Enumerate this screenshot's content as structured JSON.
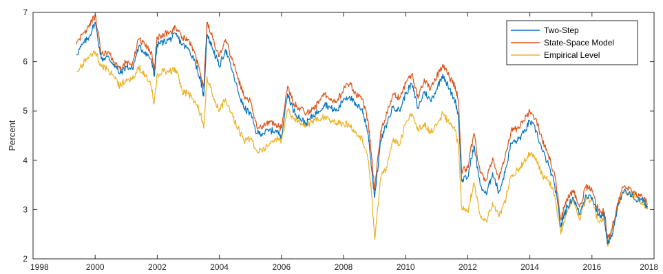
{
  "chart_data": {
    "type": "line",
    "title": "",
    "xlabel": "",
    "ylabel": "Percent",
    "xlim": [
      1998,
      2018
    ],
    "ylim": [
      2,
      7
    ],
    "xticks": [
      "1998",
      "2000",
      "2002",
      "2004",
      "2006",
      "2008",
      "2010",
      "2012",
      "2014",
      "2016",
      "2018"
    ],
    "yticks": [
      "2",
      "3",
      "4",
      "5",
      "6",
      "7"
    ],
    "grid": false,
    "legend_position": "top-right",
    "series": [
      {
        "name": "Two-Step",
        "color": "#0072BD",
        "x": [
          1999.4,
          1999.6,
          1999.8,
          2000.0,
          2000.2,
          2000.4,
          2000.6,
          2000.8,
          2001.0,
          2001.2,
          2001.4,
          2001.6,
          2001.8,
          2001.9,
          2002.0,
          2002.2,
          2002.4,
          2002.6,
          2002.8,
          2003.0,
          2003.2,
          2003.4,
          2003.5,
          2003.6,
          2003.8,
          2004.0,
          2004.2,
          2004.4,
          2004.6,
          2004.8,
          2005.0,
          2005.2,
          2005.4,
          2005.6,
          2005.8,
          2006.0,
          2006.2,
          2006.4,
          2006.6,
          2006.8,
          2007.0,
          2007.2,
          2007.4,
          2007.6,
          2007.8,
          2008.0,
          2008.2,
          2008.4,
          2008.6,
          2008.8,
          2008.9,
          2009.0,
          2009.2,
          2009.4,
          2009.6,
          2009.8,
          2010.0,
          2010.2,
          2010.4,
          2010.6,
          2010.8,
          2011.0,
          2011.2,
          2011.4,
          2011.6,
          2011.7,
          2011.8,
          2012.0,
          2012.2,
          2012.4,
          2012.6,
          2012.8,
          2013.0,
          2013.2,
          2013.4,
          2013.6,
          2013.8,
          2014.0,
          2014.2,
          2014.4,
          2014.6,
          2014.8,
          2015.0,
          2015.1,
          2015.2,
          2015.4,
          2015.6,
          2015.8,
          2016.0,
          2016.2,
          2016.4,
          2016.5,
          2016.6,
          2016.8,
          2017.0,
          2017.2,
          2017.4,
          2017.6,
          2017.8
        ],
        "values": [
          6.15,
          6.35,
          6.5,
          6.8,
          6.05,
          6.1,
          5.95,
          5.75,
          5.9,
          5.85,
          6.3,
          6.2,
          6.05,
          5.7,
          6.35,
          6.4,
          6.45,
          6.55,
          6.35,
          6.25,
          6.05,
          5.6,
          5.3,
          6.55,
          6.25,
          5.9,
          6.25,
          5.85,
          5.4,
          5.05,
          4.95,
          4.55,
          4.55,
          4.6,
          4.6,
          4.5,
          5.35,
          5.0,
          4.85,
          4.75,
          4.9,
          5.0,
          5.15,
          5.05,
          5.0,
          5.25,
          5.3,
          5.1,
          5.05,
          4.5,
          3.85,
          3.25,
          4.4,
          4.75,
          5.1,
          5.0,
          5.35,
          5.55,
          5.05,
          5.4,
          5.2,
          5.45,
          5.75,
          5.45,
          5.2,
          4.9,
          3.6,
          3.65,
          4.3,
          3.5,
          3.3,
          3.75,
          3.35,
          3.75,
          4.35,
          4.4,
          4.55,
          4.8,
          4.6,
          4.2,
          3.9,
          3.5,
          2.65,
          2.9,
          3.05,
          3.25,
          2.9,
          3.3,
          3.25,
          2.9,
          2.85,
          2.3,
          2.4,
          2.95,
          3.35,
          3.35,
          3.2,
          3.2,
          3.05
        ]
      },
      {
        "name": "State-Space Model",
        "color": "#D95319",
        "x": [
          1999.4,
          1999.6,
          1999.8,
          2000.0,
          2000.2,
          2000.4,
          2000.6,
          2000.8,
          2001.0,
          2001.2,
          2001.4,
          2001.6,
          2001.8,
          2001.9,
          2002.0,
          2002.2,
          2002.4,
          2002.6,
          2002.8,
          2003.0,
          2003.2,
          2003.4,
          2003.5,
          2003.6,
          2003.8,
          2004.0,
          2004.2,
          2004.4,
          2004.6,
          2004.8,
          2005.0,
          2005.2,
          2005.4,
          2005.6,
          2005.8,
          2006.0,
          2006.2,
          2006.4,
          2006.6,
          2006.8,
          2007.0,
          2007.2,
          2007.4,
          2007.6,
          2007.8,
          2008.0,
          2008.2,
          2008.4,
          2008.6,
          2008.8,
          2008.9,
          2009.0,
          2009.2,
          2009.4,
          2009.6,
          2009.8,
          2010.0,
          2010.2,
          2010.4,
          2010.6,
          2010.8,
          2011.0,
          2011.2,
          2011.4,
          2011.6,
          2011.7,
          2011.8,
          2012.0,
          2012.2,
          2012.4,
          2012.6,
          2012.8,
          2013.0,
          2013.2,
          2013.4,
          2013.6,
          2013.8,
          2014.0,
          2014.2,
          2014.4,
          2014.6,
          2014.8,
          2015.0,
          2015.1,
          2015.2,
          2015.4,
          2015.6,
          2015.8,
          2016.0,
          2016.2,
          2016.4,
          2016.5,
          2016.6,
          2016.8,
          2017.0,
          2017.2,
          2017.4,
          2017.6,
          2017.8
        ],
        "values": [
          6.35,
          6.55,
          6.7,
          6.95,
          6.15,
          6.2,
          6.0,
          5.85,
          6.0,
          5.95,
          6.45,
          6.35,
          6.2,
          5.85,
          6.5,
          6.55,
          6.6,
          6.7,
          6.5,
          6.45,
          6.2,
          5.75,
          5.45,
          6.8,
          6.45,
          6.1,
          6.45,
          6.05,
          5.65,
          5.3,
          5.2,
          4.7,
          4.7,
          4.75,
          4.75,
          4.65,
          5.5,
          5.15,
          5.05,
          4.95,
          5.05,
          5.15,
          5.35,
          5.25,
          5.2,
          5.45,
          5.55,
          5.35,
          5.25,
          4.75,
          4.1,
          3.4,
          4.6,
          4.95,
          5.35,
          5.25,
          5.55,
          5.75,
          5.25,
          5.65,
          5.45,
          5.7,
          5.95,
          5.7,
          5.5,
          5.2,
          3.8,
          3.85,
          4.55,
          3.75,
          3.6,
          4.05,
          3.6,
          4.05,
          4.6,
          4.65,
          4.8,
          5.0,
          4.85,
          4.4,
          4.1,
          3.7,
          2.8,
          3.05,
          3.2,
          3.4,
          3.05,
          3.45,
          3.4,
          3.0,
          2.95,
          2.4,
          2.5,
          3.05,
          3.45,
          3.45,
          3.3,
          3.3,
          3.1
        ]
      },
      {
        "name": "Empirical Level",
        "color": "#EDB120",
        "x": [
          1999.4,
          1999.6,
          1999.8,
          2000.0,
          2000.2,
          2000.4,
          2000.6,
          2000.8,
          2001.0,
          2001.2,
          2001.4,
          2001.6,
          2001.8,
          2001.9,
          2002.0,
          2002.2,
          2002.4,
          2002.6,
          2002.8,
          2003.0,
          2003.2,
          2003.4,
          2003.5,
          2003.6,
          2003.8,
          2004.0,
          2004.2,
          2004.4,
          2004.6,
          2004.8,
          2005.0,
          2005.2,
          2005.4,
          2005.6,
          2005.8,
          2006.0,
          2006.2,
          2006.4,
          2006.6,
          2006.8,
          2007.0,
          2007.2,
          2007.4,
          2007.6,
          2007.8,
          2008.0,
          2008.2,
          2008.4,
          2008.6,
          2008.8,
          2008.9,
          2009.0,
          2009.2,
          2009.4,
          2009.6,
          2009.8,
          2010.0,
          2010.2,
          2010.4,
          2010.6,
          2010.8,
          2011.0,
          2011.2,
          2011.4,
          2011.6,
          2011.7,
          2011.8,
          2012.0,
          2012.2,
          2012.4,
          2012.6,
          2012.8,
          2013.0,
          2013.2,
          2013.4,
          2013.6,
          2013.8,
          2014.0,
          2014.2,
          2014.4,
          2014.6,
          2014.8,
          2015.0,
          2015.1,
          2015.2,
          2015.4,
          2015.6,
          2015.8,
          2016.0,
          2016.2,
          2016.4,
          2016.5,
          2016.6,
          2016.8,
          2017.0,
          2017.2,
          2017.4,
          2017.6,
          2017.8
        ],
        "values": [
          5.8,
          5.95,
          6.1,
          6.2,
          5.9,
          5.85,
          5.7,
          5.5,
          5.65,
          5.65,
          5.9,
          5.75,
          5.5,
          5.15,
          5.75,
          5.8,
          5.8,
          5.85,
          5.4,
          5.35,
          5.2,
          4.95,
          4.65,
          5.7,
          5.3,
          5.0,
          5.25,
          4.95,
          4.65,
          4.4,
          4.45,
          4.2,
          4.2,
          4.3,
          4.45,
          4.4,
          5.0,
          4.85,
          4.75,
          4.7,
          4.8,
          4.8,
          4.9,
          4.8,
          4.75,
          4.75,
          4.7,
          4.55,
          4.45,
          4.0,
          3.35,
          2.4,
          3.65,
          3.85,
          4.45,
          4.3,
          4.75,
          4.95,
          4.6,
          4.75,
          4.55,
          4.7,
          4.95,
          4.75,
          4.6,
          4.3,
          3.05,
          2.95,
          3.55,
          2.9,
          2.75,
          3.15,
          2.85,
          3.15,
          3.7,
          3.8,
          3.95,
          4.15,
          4.05,
          3.7,
          3.6,
          3.3,
          2.5,
          2.75,
          2.95,
          3.2,
          2.8,
          3.2,
          3.2,
          2.75,
          2.85,
          2.3,
          2.45,
          3.0,
          3.35,
          3.35,
          3.25,
          3.15,
          3.0
        ]
      }
    ]
  }
}
